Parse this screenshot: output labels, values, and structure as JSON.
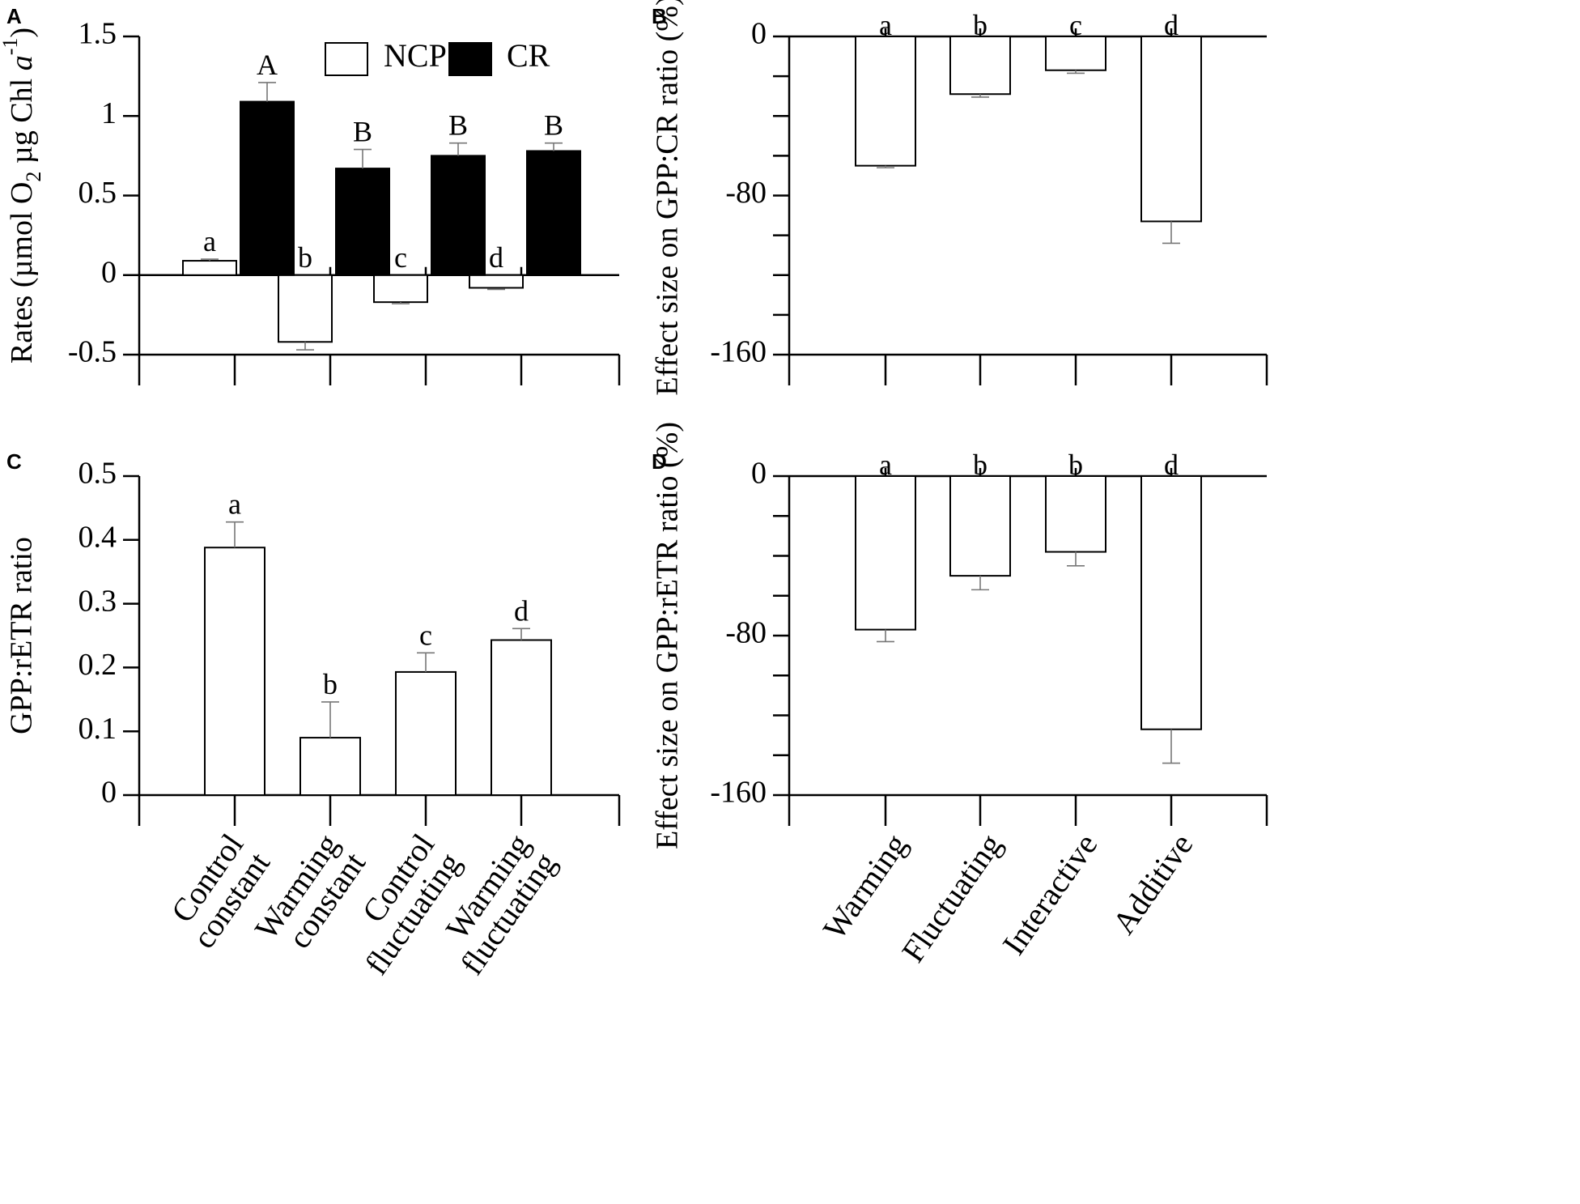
{
  "colors": {
    "ink": "#000000",
    "open_fill": "#ffffff",
    "solid_fill": "#000000",
    "error_bar": "#777777"
  },
  "chart_data": [
    {
      "panel": "A",
      "type": "bar",
      "ylabel_parts": [
        "Rates (µmol O",
        "2",
        " µg Chl ",
        "a",
        "-1",
        ")"
      ],
      "ylim": [
        -0.5,
        1.5
      ],
      "yticks": [
        -0.5,
        0,
        0.5,
        1,
        1.5
      ],
      "ytick_labels": [
        "-0.5",
        "0",
        "0.5",
        "1",
        "1.5"
      ],
      "categories": [
        "Control constant",
        "Warming constant",
        "Control fluctuating",
        "Warming fluctuating"
      ],
      "legend": [
        "NCP",
        "CR"
      ],
      "series": [
        {
          "name": "NCP",
          "fill": "open",
          "values": [
            0.09,
            -0.42,
            -0.17,
            -0.08
          ],
          "errors": [
            0.01,
            0.05,
            0.01,
            0.0
          ],
          "letters": [
            "a",
            "b",
            "c",
            "d"
          ]
        },
        {
          "name": "CR",
          "fill": "solid",
          "values": [
            1.09,
            0.67,
            0.75,
            0.78
          ],
          "errors": [
            0.12,
            0.12,
            0.08,
            0.05
          ],
          "letters": [
            "A",
            "B",
            "B",
            "B"
          ]
        }
      ]
    },
    {
      "panel": "B",
      "type": "bar",
      "ylabel": "Effect size on GPP:CR ratio (%)",
      "ylim": [
        -160,
        0
      ],
      "yticks": [
        -160,
        -140,
        -120,
        -100,
        -80,
        -60,
        -40,
        -20,
        0
      ],
      "ytick_labels": [
        "-160",
        "",
        "",
        "",
        "-80",
        "",
        "",
        "",
        "0"
      ],
      "categories": [
        "Warming",
        "Fluctuating",
        "Interactive",
        "Additive"
      ],
      "series": [
        {
          "name": "effect",
          "fill": "open",
          "values": [
            -65,
            -29,
            -17,
            -93
          ],
          "errors": [
            1,
            1.5,
            1.5,
            11
          ],
          "letters": [
            "a",
            "b",
            "c",
            "d"
          ]
        }
      ]
    },
    {
      "panel": "C",
      "type": "bar",
      "ylabel": "GPP:rETR ratio",
      "ylim": [
        0,
        0.5
      ],
      "yticks": [
        0,
        0.1,
        0.2,
        0.3,
        0.4,
        0.5
      ],
      "ytick_labels": [
        "0",
        "0.1",
        "0.2",
        "0.3",
        "0.4",
        "0.5"
      ],
      "categories": [
        "Control constant",
        "Warming constant",
        "Control fluctuating",
        "Warming fluctuating"
      ],
      "category_lines": [
        [
          "Control",
          "constant"
        ],
        [
          "Warming",
          "constant"
        ],
        [
          "Control",
          "fluctuating"
        ],
        [
          "Warming",
          "fluctuating"
        ]
      ],
      "series": [
        {
          "name": "GPP:rETR",
          "fill": "open",
          "values": [
            0.388,
            0.09,
            0.193,
            0.243
          ],
          "errors": [
            0.04,
            0.056,
            0.03,
            0.018
          ],
          "letters": [
            "a",
            "b",
            "c",
            "d"
          ]
        }
      ]
    },
    {
      "panel": "D",
      "type": "bar",
      "ylabel": "Effect size on GPP:rETR ratio (%)",
      "ylim": [
        -160,
        0
      ],
      "yticks": [
        -160,
        -140,
        -120,
        -100,
        -80,
        -60,
        -40,
        -20,
        0
      ],
      "ytick_labels": [
        "-160",
        "",
        "",
        "",
        "-80",
        "",
        "",
        "",
        "0"
      ],
      "categories": [
        "Warming",
        "Fluctuating",
        "Interactive",
        "Additive"
      ],
      "series": [
        {
          "name": "effect",
          "fill": "open",
          "values": [
            -77,
            -50,
            -38,
            -127
          ],
          "errors": [
            6,
            7,
            7,
            17
          ],
          "letters": [
            "a",
            "b",
            "b",
            "d"
          ]
        }
      ]
    }
  ]
}
